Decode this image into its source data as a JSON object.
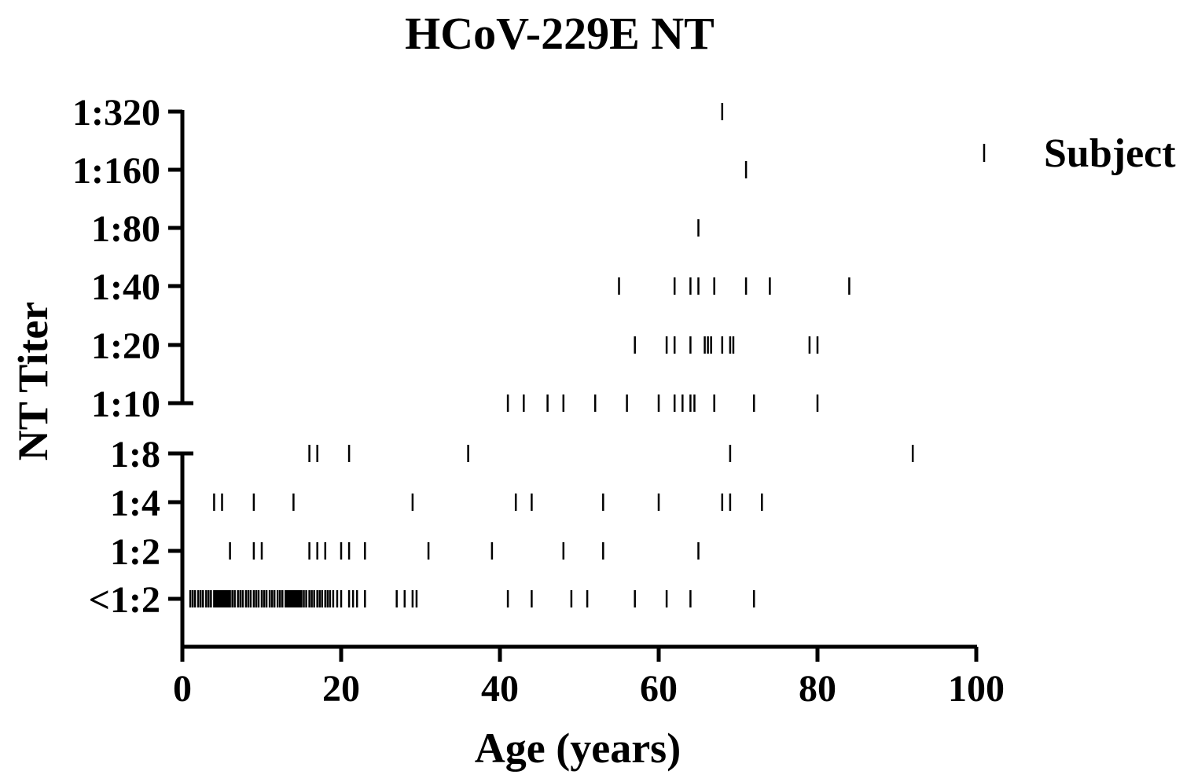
{
  "chart_data": {
    "type": "scatter",
    "title": "HCoV-229E NT",
    "xlabel": "Age (years)",
    "ylabel": "NT Titer",
    "xlim": [
      0,
      100
    ],
    "x_ticks": [
      "0",
      "20",
      "40",
      "60",
      "80",
      "100"
    ],
    "y_categories": [
      "<1:2",
      "1:2",
      "1:4",
      "1:8",
      "1:10",
      "1:20",
      "1:40",
      "1:80",
      "1:160",
      "1:320"
    ],
    "y_axis_break": "between 1:8 and 1:10",
    "marker": "vertical-line",
    "legend_position": "top-right",
    "grid": false,
    "series": [
      {
        "name": "Subject",
        "points": [
          {
            "titer": "1:320",
            "ages": [
              68
            ]
          },
          {
            "titer": "1:160",
            "ages": [
              71
            ]
          },
          {
            "titer": "1:80",
            "ages": [
              65
            ]
          },
          {
            "titer": "1:40",
            "ages": [
              55,
              62,
              64,
              65,
              67,
              71,
              74,
              84
            ]
          },
          {
            "titer": "1:20",
            "ages": [
              57,
              61,
              62,
              64,
              65.8,
              66.2,
              66.6,
              68,
              69,
              69.4,
              79,
              80
            ]
          },
          {
            "titer": "1:10",
            "ages": [
              41,
              43,
              46,
              48,
              52,
              56,
              60,
              62,
              63,
              64,
              64.5,
              67,
              72,
              80
            ]
          },
          {
            "titer": "1:8",
            "ages": [
              16,
              17,
              21,
              36,
              69,
              92
            ]
          },
          {
            "titer": "1:4",
            "ages": [
              4,
              5,
              9,
              14,
              29,
              42,
              44,
              53,
              60,
              68,
              69,
              73
            ]
          },
          {
            "titer": "1:2",
            "ages": [
              6,
              9,
              10,
              16,
              17,
              18,
              20,
              21,
              23,
              31,
              39,
              48,
              53,
              65
            ]
          },
          {
            "titer": "<1:2",
            "ages": [
              1,
              1.3,
              1.6,
              2,
              2.3,
              2.6,
              3,
              3.3,
              3.6,
              4,
              4.2,
              4.4,
              4.6,
              4.8,
              5,
              5.2,
              5.4,
              5.6,
              5.8,
              6,
              6.3,
              6.6,
              7,
              7.3,
              7.6,
              8,
              8.3,
              8.6,
              9,
              9.3,
              9.6,
              10,
              10.3,
              10.6,
              11,
              11.3,
              11.6,
              12,
              12.3,
              12.6,
              13,
              13.2,
              13.4,
              13.6,
              13.8,
              14,
              14.2,
              14.4,
              14.6,
              14.8,
              15,
              15.3,
              15.6,
              16,
              16.3,
              16.6,
              17,
              17.3,
              17.6,
              18,
              18.3,
              18.6,
              19,
              19.5,
              20,
              21,
              21.5,
              22,
              23,
              27,
              28,
              29,
              29.5,
              41,
              44,
              49,
              51,
              57,
              61,
              64,
              72
            ]
          }
        ]
      }
    ]
  }
}
